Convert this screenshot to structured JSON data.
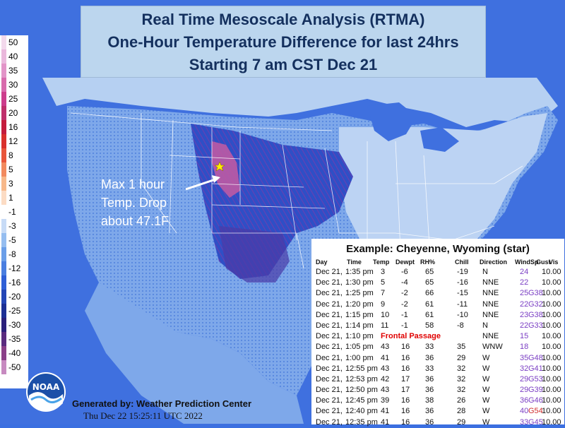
{
  "title": {
    "line1": "Real Time Mesoscale Analysis (RTMA)",
    "line2": "One-Hour Temperature Difference for last 24hrs",
    "line3": "Starting 7 am CST Dec 21"
  },
  "color_scale": {
    "levels": [
      {
        "label": "50",
        "color": "#f3d9ec"
      },
      {
        "label": "40",
        "color": "#eab8dc"
      },
      {
        "label": "35",
        "color": "#e294c8"
      },
      {
        "label": "30",
        "color": "#d86aac"
      },
      {
        "label": "25",
        "color": "#cc3c8c"
      },
      {
        "label": "20",
        "color": "#bf2f6c"
      },
      {
        "label": "16",
        "color": "#c41c3c"
      },
      {
        "label": "12",
        "color": "#d9302c"
      },
      {
        "label": "8",
        "color": "#e8553a"
      },
      {
        "label": "5",
        "color": "#f28a5e"
      },
      {
        "label": "3",
        "color": "#f7b88a"
      },
      {
        "label": "1",
        "color": "#fcdcc4"
      },
      {
        "label": "-1",
        "color": "#ffffff"
      },
      {
        "label": "-3",
        "color": "#c7dbf6"
      },
      {
        "label": "-5",
        "color": "#95bdf0"
      },
      {
        "label": "-8",
        "color": "#6a9ee8"
      },
      {
        "label": "-12",
        "color": "#4a7ee0"
      },
      {
        "label": "-16",
        "color": "#2f5fd6"
      },
      {
        "label": "-20",
        "color": "#2446b6"
      },
      {
        "label": "-25",
        "color": "#1c2f94"
      },
      {
        "label": "-30",
        "color": "#2a1f7a"
      },
      {
        "label": "-35",
        "color": "#5a2b7e"
      },
      {
        "label": "-40",
        "color": "#8a3f88"
      },
      {
        "label": "-50",
        "color": "#c78ac0"
      }
    ]
  },
  "annotation": {
    "line1": "Max 1 hour",
    "line2": "Temp. Drop",
    "line3": "about 47.1F"
  },
  "example_table": {
    "title": "Example: Cheyenne, Wyoming (star)",
    "columns": [
      "Day",
      "Time",
      "Temp",
      "Dewpt",
      "RH%",
      "Chill",
      "Direction",
      "WindSp",
      "Gust",
      "Vis"
    ],
    "rows": [
      {
        "day": "Dec 21,",
        "time": "1:35 pm",
        "temp": "3",
        "dewpt": "-6",
        "rh": "65",
        "chill": "-19",
        "dir": "N",
        "windsp": "24",
        "gust": "",
        "vis": "10.00"
      },
      {
        "day": "Dec 21,",
        "time": "1:30 pm",
        "temp": "5",
        "dewpt": "-4",
        "rh": "65",
        "chill": "-16",
        "dir": "NNE",
        "windsp": "22",
        "gust": "",
        "vis": "10.00"
      },
      {
        "day": "Dec 21,",
        "time": "1:25 pm",
        "temp": "7",
        "dewpt": "-2",
        "rh": "66",
        "chill": "-15",
        "dir": "NNE",
        "windsp": "25",
        "gust": "G38",
        "vis": "10.00"
      },
      {
        "day": "Dec 21,",
        "time": "1:20 pm",
        "temp": "9",
        "dewpt": "-2",
        "rh": "61",
        "chill": "-11",
        "dir": "NNE",
        "windsp": "22",
        "gust": "G32",
        "vis": "10.00"
      },
      {
        "day": "Dec 21,",
        "time": "1:15 pm",
        "temp": "10",
        "dewpt": "-1",
        "rh": "61",
        "chill": "-10",
        "dir": "NNE",
        "windsp": "23",
        "gust": "G38",
        "vis": "10.00"
      },
      {
        "day": "Dec 21,",
        "time": "1:14 pm",
        "temp": "11",
        "dewpt": "-1",
        "rh": "58",
        "chill": "-8",
        "dir": "N",
        "windsp": "22",
        "gust": "G33",
        "vis": "10.00"
      },
      {
        "day": "Dec 21,",
        "time": "1:10 pm",
        "temp": "",
        "dewpt": "",
        "rh": "",
        "chill": "",
        "dir": "NNE",
        "windsp": "15",
        "gust": "",
        "vis": "10.00"
      },
      {
        "day": "Dec 21,",
        "time": "1:05 pm",
        "temp": "43",
        "dewpt": "16",
        "rh": "33",
        "chill": "35",
        "dir": "WNW",
        "windsp": "18",
        "gust": "",
        "vis": "10.00"
      },
      {
        "day": "Dec 21,",
        "time": "1:00 pm",
        "temp": "41",
        "dewpt": "16",
        "rh": "36",
        "chill": "29",
        "dir": "W",
        "windsp": "35",
        "gust": "G48",
        "vis": "10.00"
      },
      {
        "day": "Dec 21,",
        "time": "12:55 pm",
        "temp": "43",
        "dewpt": "16",
        "rh": "33",
        "chill": "32",
        "dir": "W",
        "windsp": "32",
        "gust": "G41",
        "vis": "10.00"
      },
      {
        "day": "Dec 21,",
        "time": "12:53 pm",
        "temp": "42",
        "dewpt": "17",
        "rh": "36",
        "chill": "32",
        "dir": "W",
        "windsp": "29",
        "gust": "G53",
        "vis": "10.00"
      },
      {
        "day": "Dec 21,",
        "time": "12:50 pm",
        "temp": "43",
        "dewpt": "17",
        "rh": "36",
        "chill": "32",
        "dir": "W",
        "windsp": "29",
        "gust": "G39",
        "vis": "10.00"
      },
      {
        "day": "Dec 21,",
        "time": "12:45 pm",
        "temp": "39",
        "dewpt": "16",
        "rh": "38",
        "chill": "26",
        "dir": "W",
        "windsp": "36",
        "gust": "G46",
        "vis": "10.00"
      },
      {
        "day": "Dec 21,",
        "time": "12:40 pm",
        "temp": "41",
        "dewpt": "16",
        "rh": "36",
        "chill": "28",
        "dir": "W",
        "windsp": "40",
        "gust": "G54",
        "vis": "10.00"
      },
      {
        "day": "Dec 21,",
        "time": "12:35 pm",
        "temp": "41",
        "dewpt": "16",
        "rh": "36",
        "chill": "29",
        "dir": "W",
        "windsp": "33",
        "gust": "G45",
        "vis": "10.00"
      }
    ],
    "frontal_label": "Frontal Passage"
  },
  "footer": {
    "generated_by": "Generated by: Weather Prediction Center",
    "timestamp": "Thu Dec 22 15:25:11 UTC 2022"
  },
  "logo": {
    "text": "NOAA"
  },
  "colors": {
    "ocean": "#3b6fe0",
    "land_light": "#a9c8f2",
    "frontal": "#e00000",
    "gust": "#7b3fc4"
  }
}
